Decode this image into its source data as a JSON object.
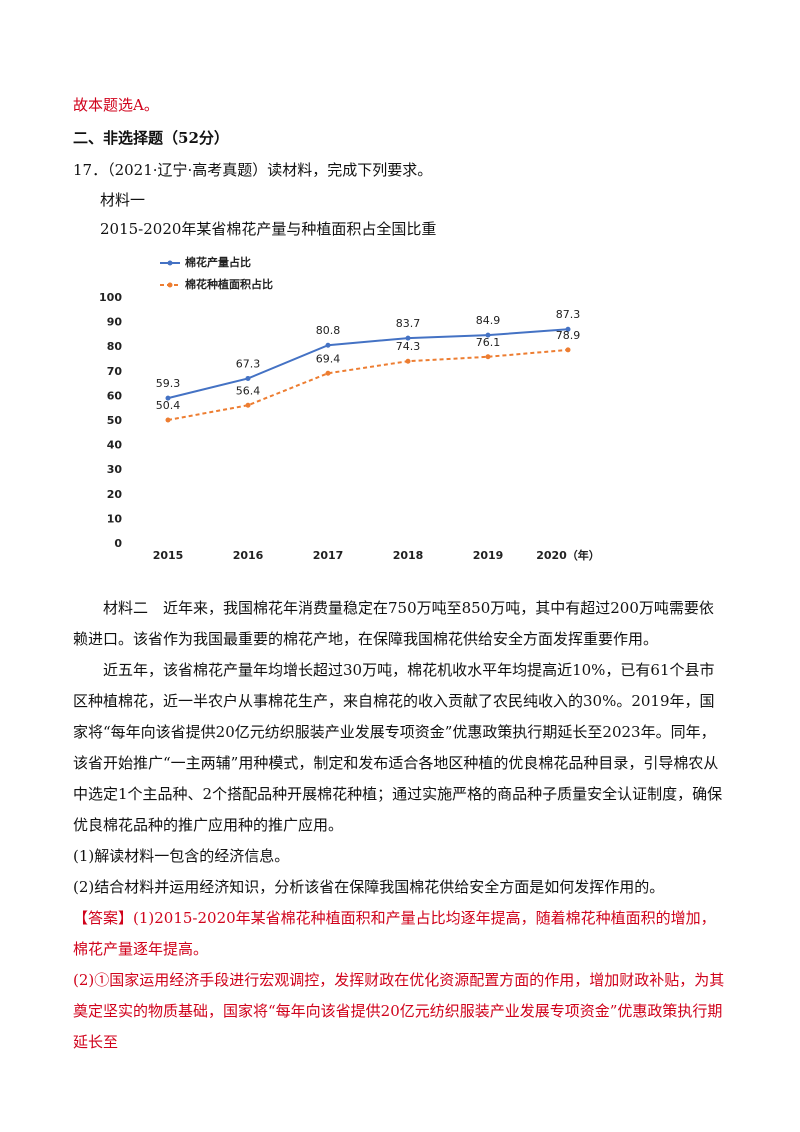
{
  "top_answer": "故本题选A。",
  "section_title": "二、非选择题（52分）",
  "question": "17．（2021·辽宁·高考真题）读材料，完成下列要求。",
  "material1_label": "材料一",
  "chart_data": {
    "type": "line",
    "title": "2015-2020年某省棉花产量与种植面积占全国比重",
    "categories": [
      "2015",
      "2016",
      "2017",
      "2018",
      "2019",
      "2020（年）"
    ],
    "series": [
      {
        "name": "棉花产量占比",
        "color": "#4472c4",
        "dashed": false,
        "values": [
          59.3,
          67.3,
          80.8,
          83.7,
          84.9,
          87.3
        ]
      },
      {
        "name": "棉花种植面积占比",
        "color": "#ed7d31",
        "dashed": true,
        "values": [
          50.4,
          56.4,
          69.4,
          74.3,
          76.1,
          78.9
        ]
      }
    ],
    "ylim": [
      0,
      100
    ],
    "yticks": [
      0,
      10,
      20,
      30,
      40,
      50,
      60,
      70,
      80,
      90,
      100
    ],
    "grid": false,
    "legend": "top-left"
  },
  "paragraphs": [
    "材料二　近年来，我国棉花年消费量稳定在750万吨至850万吨，其中有超过200万吨需要依赖进口。该省作为我国最重要的棉花产地，在保障我国棉花供给安全方面发挥重要作用。",
    "近五年，该省棉花产量年均增长超过30万吨，棉花机收水平年均提高近10%，已有61个县市区种植棉花，近一半农户从事棉花生产，来自棉花的收入贡献了农民纯收入的30%。2019年，国家将“每年向该省提供20亿元纺织服装产业发展专项资金”优惠政策执行期延长至2023年。同年，该省开始推广“一主两辅”用种模式，制定和发布适合各地区种植的优良棉花品种目录，引导棉农从中选定1个主品种、2个搭配品种开展棉花种植；通过实施严格的商品种子质量安全认证制度，确保优良棉花品种的推广应用种的推广应用。",
    "(1)解读材料一包含的经济信息。",
    "(2)结合材料并运用经济知识，分析该省在保障我国棉花供给安全方面是如何发挥作用的。"
  ],
  "answers": [
    "【答案】(1)2015-2020年某省棉花种植面积和产量占比均逐年提高，随着棉花种植面积的增加，棉花产量逐年提高。",
    "(2)①国家运用经济手段进行宏观调控，发挥财政在优化资源配置方面的作用，增加财政补贴，为其奠定坚实的物质基础，国家将“每年向该省提供20亿元纺织服装产业发展专项资金”优惠政策执行期延长至"
  ]
}
